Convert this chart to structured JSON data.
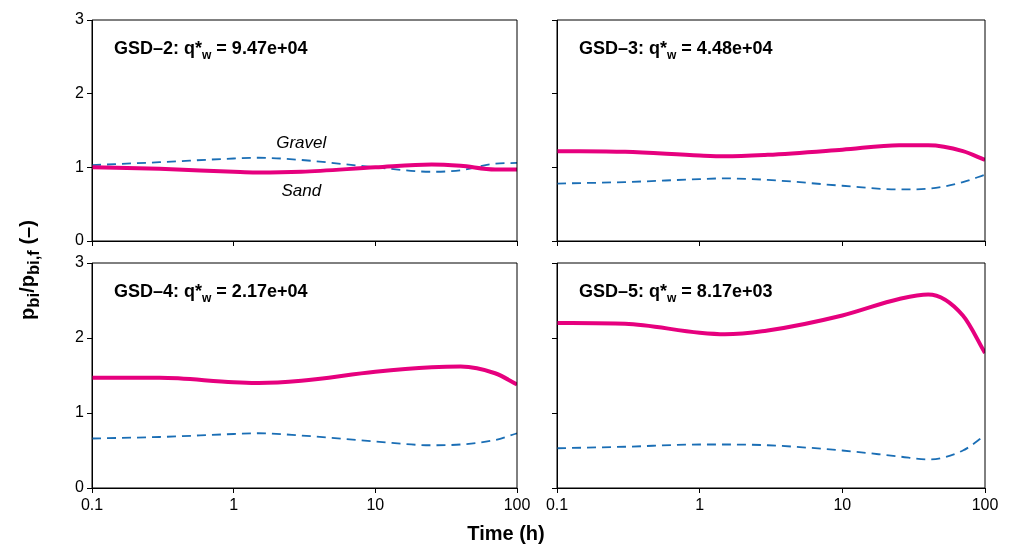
{
  "chart_data": [
    {
      "type": "line",
      "title": "GSD–2: q*$_{w}$ = 9.47e+04",
      "ylabel": "p$_{bi}$/p$_{bi,f}$ (–)",
      "log": "x",
      "xlim": [
        0.1,
        100
      ],
      "xticks": [
        0.1,
        1,
        10,
        100
      ],
      "ylim": [
        0,
        3
      ],
      "yticks": [
        0,
        1,
        2,
        3
      ],
      "tick_labels": "y",
      "legend": false,
      "x": [
        0.1,
        0.3,
        1,
        1.5,
        3,
        10,
        25,
        40,
        70,
        100
      ],
      "series": [
        {
          "name": "Sand",
          "color": "#e6007e",
          "line_style": "solid",
          "values": [
            1.0,
            0.98,
            0.94,
            0.93,
            0.94,
            1.0,
            1.04,
            1.02,
            0.97,
            0.97
          ]
        },
        {
          "name": "Gravel",
          "color": "#1a6eb5",
          "line_style": "dashed",
          "values": [
            1.03,
            1.07,
            1.12,
            1.13,
            1.1,
            1.0,
            0.94,
            0.96,
            1.05,
            1.06
          ]
        }
      ]
    },
    {
      "type": "line",
      "title": "GSD–3: q*$_{w}$ = 4.48e+04",
      "log": "x",
      "xlim": [
        0.1,
        100
      ],
      "xticks": [
        0.1,
        1,
        10,
        100
      ],
      "ylim": [
        0,
        3
      ],
      "yticks": [
        0,
        1,
        2,
        3
      ],
      "tick_labels": false,
      "legend": false,
      "x": [
        0.1,
        0.3,
        1,
        1.5,
        3,
        10,
        25,
        40,
        70,
        100
      ],
      "series": [
        {
          "color": "#e6007e",
          "line_style": "solid",
          "values": [
            1.22,
            1.21,
            1.16,
            1.15,
            1.17,
            1.24,
            1.3,
            1.3,
            1.22,
            1.1
          ]
        },
        {
          "color": "#1a6eb5",
          "line_style": "dashed",
          "values": [
            0.78,
            0.8,
            0.84,
            0.85,
            0.83,
            0.75,
            0.7,
            0.71,
            0.8,
            0.9
          ]
        }
      ]
    },
    {
      "type": "line",
      "title": "GSD–4: q*$_{w}$ = 2.17e+04",
      "xlabel": "Time (h)",
      "log": "x",
      "xlim": [
        0.1,
        100
      ],
      "xticks": [
        0.1,
        1,
        10,
        100
      ],
      "ylim": [
        0,
        3
      ],
      "yticks": [
        0,
        1,
        2,
        3
      ],
      "legend": false,
      "x": [
        0.1,
        0.3,
        1,
        1.5,
        3,
        10,
        25,
        40,
        70,
        100
      ],
      "series": [
        {
          "color": "#e6007e",
          "line_style": "solid",
          "values": [
            1.47,
            1.47,
            1.41,
            1.4,
            1.43,
            1.55,
            1.61,
            1.62,
            1.53,
            1.38
          ]
        },
        {
          "color": "#1a6eb5",
          "line_style": "dashed",
          "values": [
            0.66,
            0.68,
            0.72,
            0.73,
            0.7,
            0.62,
            0.57,
            0.58,
            0.64,
            0.73
          ]
        }
      ]
    },
    {
      "type": "line",
      "title": "GSD–5: q*$_{w}$ = 8.17e+03",
      "log": "x",
      "xlim": [
        0.1,
        100
      ],
      "xticks": [
        0.1,
        1,
        10,
        100
      ],
      "ylim": [
        0,
        3
      ],
      "yticks": [
        0,
        1,
        2,
        3
      ],
      "tick_labels": "x",
      "legend": false,
      "x": [
        0.1,
        0.3,
        1,
        1.5,
        3,
        10,
        25,
        40,
        70,
        100
      ],
      "series": [
        {
          "color": "#e6007e",
          "line_style": "solid",
          "values": [
            2.2,
            2.19,
            2.07,
            2.05,
            2.1,
            2.3,
            2.52,
            2.58,
            2.3,
            1.8
          ]
        },
        {
          "color": "#1a6eb5",
          "line_style": "dashed",
          "values": [
            0.53,
            0.55,
            0.58,
            0.58,
            0.57,
            0.5,
            0.42,
            0.38,
            0.5,
            0.7
          ]
        }
      ]
    }
  ]
}
